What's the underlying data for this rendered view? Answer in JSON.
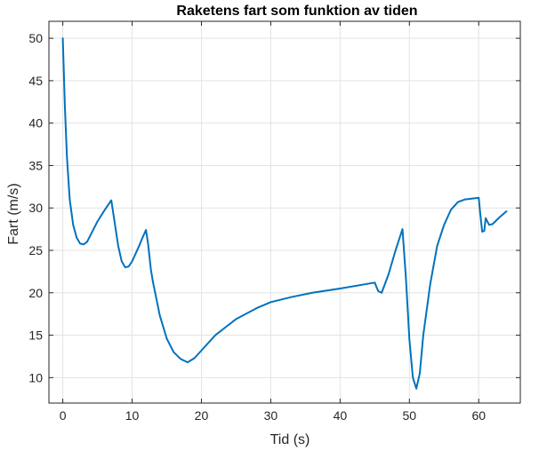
{
  "chart_data": {
    "type": "line",
    "title": "Raketens fart som funktion av tiden",
    "xlabel": "Tid (s)",
    "ylabel": "Fart (m/s)",
    "xlim": [
      -2,
      66
    ],
    "ylim": [
      7,
      52
    ],
    "xticks": [
      0,
      10,
      20,
      30,
      40,
      50,
      60
    ],
    "yticks": [
      10,
      15,
      20,
      25,
      30,
      35,
      40,
      45,
      50
    ],
    "grid": true,
    "series": [
      {
        "color": "#0072BD",
        "x": [
          0,
          0.3,
          0.6,
          1,
          1.5,
          2,
          2.5,
          3,
          3.5,
          4,
          5,
          6,
          6.5,
          7,
          7.5,
          8,
          8.5,
          9,
          9.5,
          10,
          10.5,
          11,
          11.5,
          12,
          12.3,
          12.7,
          13,
          14,
          15,
          16,
          17,
          18,
          19,
          20,
          22,
          25,
          28,
          30,
          33,
          36,
          40,
          45,
          45.5,
          46,
          47,
          48,
          49,
          49.5,
          50,
          50.5,
          51,
          51.5,
          52,
          53,
          54,
          55,
          56,
          57,
          58,
          59,
          60,
          60.2,
          60.5,
          60.8,
          61,
          61.5,
          62,
          63,
          64
        ],
        "y": [
          50,
          42,
          36,
          31,
          28,
          26.5,
          25.8,
          25.7,
          26,
          26.8,
          28.4,
          29.7,
          30.3,
          30.9,
          28.2,
          25.5,
          23.7,
          23,
          23.1,
          23.7,
          24.6,
          25.5,
          26.5,
          27.4,
          25.8,
          22.8,
          21.3,
          17.3,
          14.6,
          13,
          12.2,
          11.8,
          12.3,
          13.2,
          15,
          16.9,
          18.2,
          18.9,
          19.5,
          20,
          20.5,
          21.2,
          20.2,
          20,
          22.2,
          25,
          27.5,
          21.7,
          14.5,
          10,
          8.7,
          10.5,
          15,
          21,
          25.5,
          28,
          29.8,
          30.7,
          31,
          31.1,
          31.2,
          29.5,
          27.2,
          27.3,
          28.8,
          28,
          28.1,
          28.9,
          29.6
        ]
      }
    ]
  }
}
